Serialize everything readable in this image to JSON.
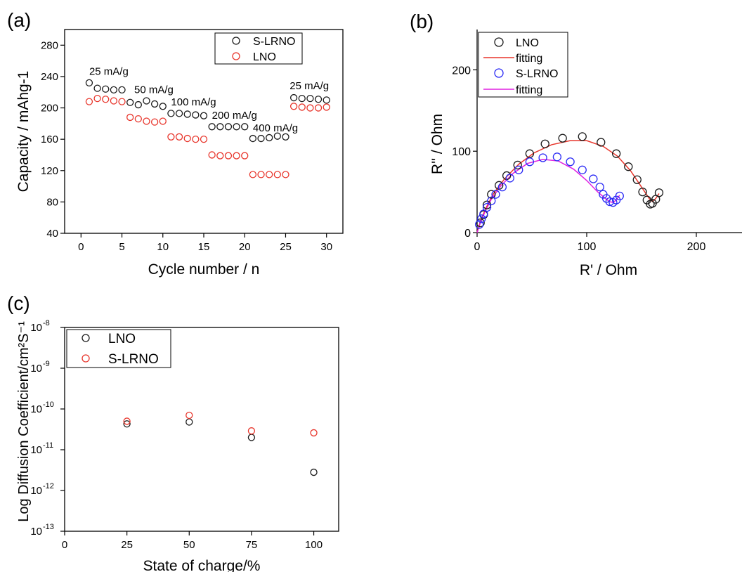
{
  "colors": {
    "black": "#1a1a1a",
    "red": "#e8352b",
    "blue": "#2b2bf5",
    "magenta": "#e020e0"
  },
  "chart_data": [
    {
      "panel": "(a)",
      "type": "scatter",
      "xlabel": "Cycle number / n",
      "ylabel": "Capacity / mAhg-1",
      "xlim": [
        -2,
        32
      ],
      "ylim": [
        40,
        300
      ],
      "xticks": [
        0,
        5,
        10,
        15,
        20,
        25,
        30
      ],
      "yticks": [
        40,
        80,
        120,
        160,
        200,
        240,
        280
      ],
      "legend_position": "top-right",
      "annotations": [
        {
          "text": "25 mA/g",
          "x": 1,
          "y": 242
        },
        {
          "text": "50 mA/g",
          "x": 6.5,
          "y": 219
        },
        {
          "text": "100 mA/g",
          "x": 11,
          "y": 203
        },
        {
          "text": "200 mA/g",
          "x": 16,
          "y": 186
        },
        {
          "text": "400 mA/g",
          "x": 21,
          "y": 170
        },
        {
          "text": "25 mA/g",
          "x": 25.5,
          "y": 224
        }
      ],
      "series": [
        {
          "name": "S-LRNO",
          "color": "#1a1a1a",
          "x": [
            1,
            2,
            3,
            4,
            5,
            6,
            7,
            8,
            9,
            10,
            11,
            12,
            13,
            14,
            15,
            16,
            17,
            18,
            19,
            20,
            21,
            22,
            23,
            24,
            25,
            26,
            27,
            28,
            29,
            30
          ],
          "y": [
            232,
            225,
            224,
            223,
            223,
            207,
            204,
            209,
            205,
            202,
            193,
            193,
            192,
            191,
            190,
            176,
            176,
            176,
            176,
            176,
            161,
            161,
            162,
            164,
            163,
            213,
            212,
            212,
            211,
            210
          ]
        },
        {
          "name": "LNO",
          "color": "#e8352b",
          "x": [
            1,
            2,
            3,
            4,
            5,
            6,
            7,
            8,
            9,
            10,
            11,
            12,
            13,
            14,
            15,
            16,
            17,
            18,
            19,
            20,
            21,
            22,
            23,
            24,
            25,
            26,
            27,
            28,
            29,
            30
          ],
          "y": [
            208,
            212,
            211,
            209,
            208,
            188,
            186,
            183,
            182,
            183,
            163,
            163,
            161,
            160,
            160,
            140,
            139,
            139,
            139,
            139,
            115,
            115,
            115,
            115,
            115,
            202,
            201,
            200,
            200,
            201
          ]
        }
      ]
    },
    {
      "panel": "(b)",
      "type": "scatter",
      "xlabel": "R' / Ohm",
      "ylabel": "R'' / Ohm",
      "xlim": [
        0,
        240
      ],
      "ylim": [
        0,
        250
      ],
      "xticks": [
        0,
        100,
        200
      ],
      "yticks": [
        0,
        100,
        200
      ],
      "legend_position": "top-left",
      "series": [
        {
          "name": "LNO",
          "kind": "markers",
          "color": "#1a1a1a",
          "x": [
            3,
            6,
            9,
            13,
            20,
            27,
            37,
            48,
            62,
            78,
            96,
            113,
            127,
            138,
            146,
            151,
            155,
            158,
            160,
            163,
            166
          ],
          "y": [
            12,
            22,
            34,
            47,
            58,
            70,
            83,
            97,
            109,
            116,
            118,
            111,
            97,
            81,
            65,
            50,
            40,
            35,
            36,
            41,
            49
          ]
        },
        {
          "name": "fitting",
          "kind": "line",
          "color": "#e8352b",
          "x": [
            0,
            3,
            8,
            15,
            25,
            38,
            52,
            68,
            85,
            100,
            115,
            128,
            140,
            150,
            157,
            160,
            163,
            166
          ],
          "y": [
            0,
            14,
            30,
            48,
            66,
            84,
            98,
            108,
            113,
            113,
            106,
            94,
            76,
            56,
            42,
            38,
            42,
            48
          ]
        },
        {
          "name": "S-LRNO",
          "kind": "markers",
          "color": "#2b2bf5",
          "x": [
            2,
            4,
            6,
            9,
            13,
            17,
            23,
            30,
            38,
            48,
            60,
            73,
            85,
            96,
            106,
            112,
            115,
            118,
            121,
            124,
            127,
            130
          ],
          "y": [
            10,
            17,
            23,
            31,
            39,
            47,
            56,
            67,
            77,
            87,
            92,
            93,
            87,
            77,
            66,
            56,
            47,
            42,
            38,
            37,
            40,
            45
          ],
          "fill": "none"
        },
        {
          "name": "fitting",
          "kind": "line",
          "color": "#e020e0",
          "x": [
            0,
            3,
            7,
            13,
            22,
            33,
            46,
            60,
            74,
            88,
            100,
            110,
            117,
            121,
            124,
            127,
            130
          ],
          "y": [
            0,
            12,
            25,
            41,
            58,
            73,
            85,
            90,
            88,
            78,
            64,
            50,
            42,
            38,
            37,
            40,
            46
          ]
        }
      ]
    },
    {
      "panel": "(c)",
      "type": "scatter",
      "xlabel": "State of charge/%",
      "ylabel": "Log Diffusion Coefficient/cm²S⁻¹",
      "xlim": [
        0,
        110
      ],
      "ylim_log10": [
        -13,
        -8
      ],
      "xticks": [
        0,
        25,
        50,
        75,
        100
      ],
      "ytick_exponents": [
        -13,
        -12,
        -11,
        -10,
        -9,
        -8
      ],
      "legend_position": "top-left",
      "series": [
        {
          "name": "LNO",
          "color": "#1a1a1a",
          "x": [
            25,
            50,
            75,
            100
          ],
          "y": [
            4.3e-11,
            4.8e-11,
            2e-11,
            2.8e-12
          ]
        },
        {
          "name": "S-LRNO",
          "color": "#e8352b",
          "x": [
            25,
            50,
            75,
            100
          ],
          "y": [
            5e-11,
            7e-11,
            2.9e-11,
            2.6e-11
          ]
        }
      ]
    }
  ]
}
